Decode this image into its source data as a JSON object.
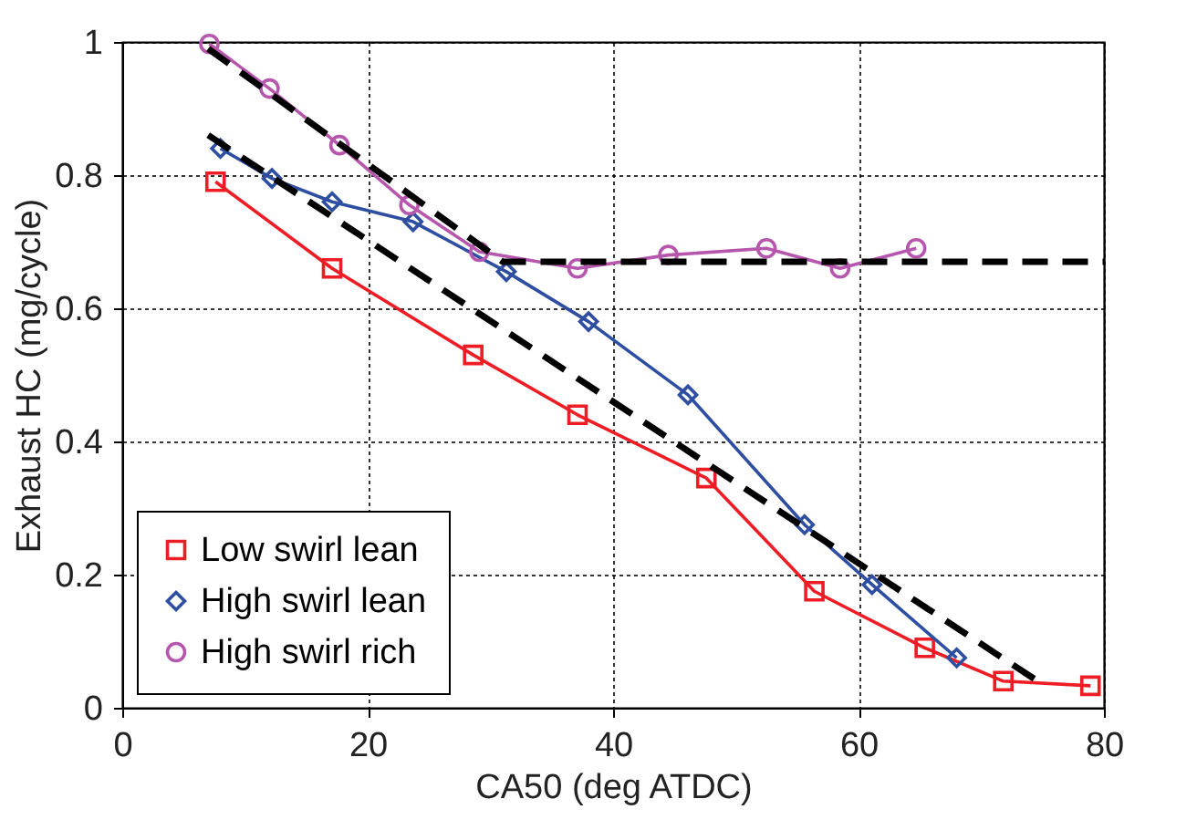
{
  "chart_data": {
    "type": "line",
    "xlabel": "CA50 (deg ATDC)",
    "ylabel": "Exhaust HC (mg/cycle)",
    "xlim": [
      0,
      80
    ],
    "ylim": [
      0,
      1
    ],
    "xticks": [
      0,
      20,
      40,
      60,
      80
    ],
    "yticks": [
      0,
      0.2,
      0.4,
      0.6,
      0.8,
      1
    ],
    "grid": true,
    "legend": "bottom left",
    "series": [
      {
        "name": "Low swirl lean",
        "color": "#ee1c24",
        "marker": "square",
        "x": [
          7.6,
          17.1,
          28.6,
          37.1,
          47.6,
          56.4,
          65.4,
          71.8,
          78.9
        ],
        "values": [
          0.79,
          0.66,
          0.53,
          0.44,
          0.345,
          0.175,
          0.09,
          0.04,
          0.033
        ]
      },
      {
        "name": "High swirl lean",
        "color": "#2e4ea2",
        "marker": "diamond",
        "x": [
          8,
          12.2,
          17.1,
          23.7,
          31.3,
          38,
          46.1,
          55.6,
          61.1,
          68
        ],
        "values": [
          0.84,
          0.795,
          0.76,
          0.73,
          0.655,
          0.58,
          0.47,
          0.275,
          0.185,
          0.075
        ]
      },
      {
        "name": "High swirl rich",
        "color": "#b657ad",
        "marker": "circle",
        "x": [
          7.1,
          12,
          17.7,
          23.4,
          29.1,
          37.1,
          44.5,
          52.5,
          58.5,
          64.7
        ],
        "values": [
          0.997,
          0.93,
          0.845,
          0.755,
          0.685,
          0.66,
          0.68,
          0.69,
          0.66,
          0.69
        ]
      },
      {
        "color": "#000000",
        "marker": "none",
        "line_style": "dashed",
        "x": [
          7,
          31,
          80
        ],
        "values": [
          0.99,
          0.67,
          0.67
        ]
      },
      {
        "color": "#000000",
        "marker": "none",
        "line_style": "dashed",
        "x": [
          7,
          74.6
        ],
        "values": [
          0.86,
          0.04
        ]
      }
    ]
  }
}
